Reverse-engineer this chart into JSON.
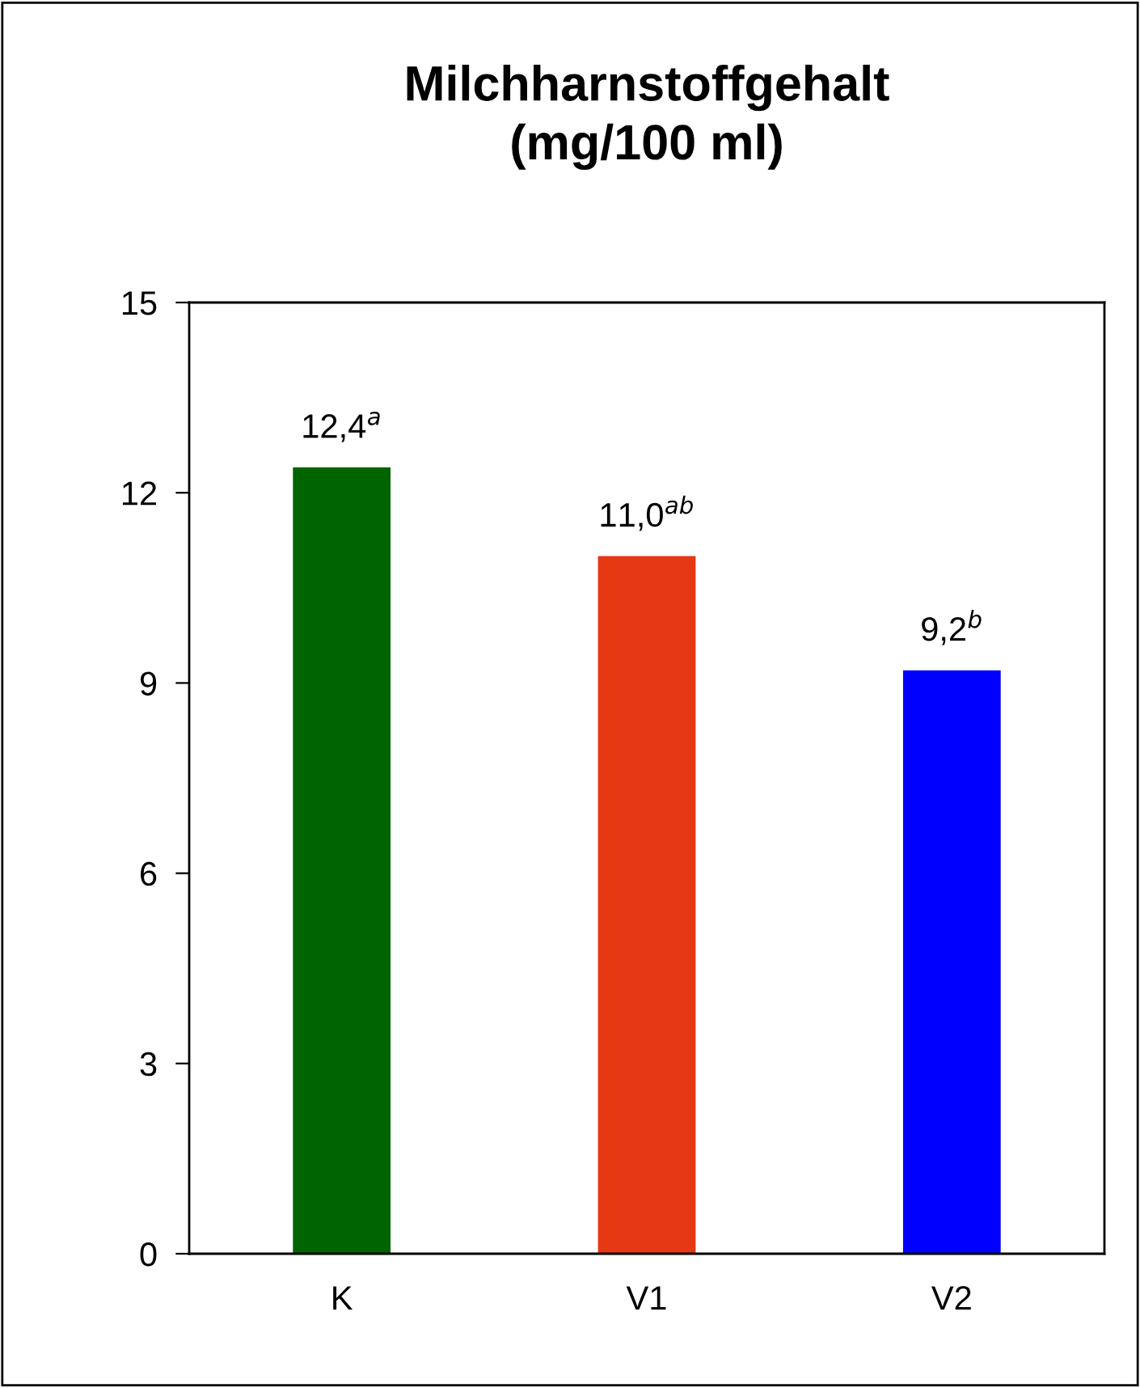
{
  "chart_data": {
    "type": "bar",
    "title": "Milchharnstoffgehalt\n(mg/100 ml)",
    "categories": [
      "K",
      "V1",
      "V2"
    ],
    "values": [
      12.4,
      11.0,
      9.2
    ],
    "colors": [
      "#006400",
      "#e63812",
      "#0000ff"
    ],
    "value_labels": [
      "12,4$^{a}$",
      "11,0$^{ab}$",
      "9,2$^{b}$"
    ],
    "ylim": [
      0,
      15
    ],
    "yticks": [
      0,
      3,
      6,
      9,
      12,
      15
    ],
    "grid": false,
    "legend": false
  }
}
